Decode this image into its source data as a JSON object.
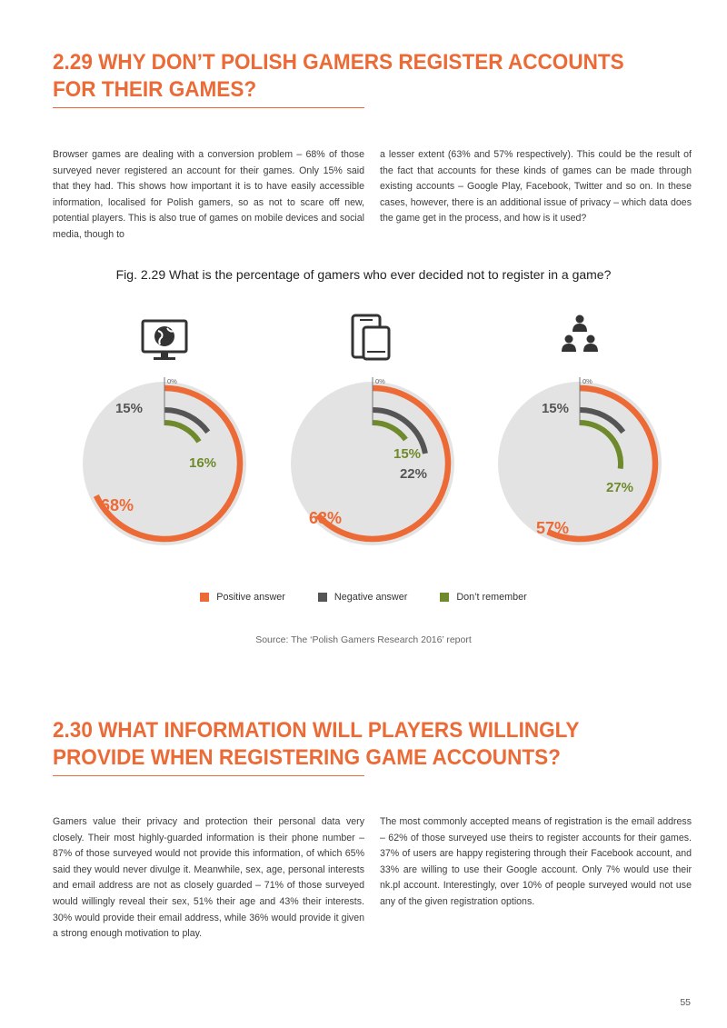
{
  "section1": {
    "heading": "2.29 WHY DON’T POLISH GAMERS REGISTER ACCOUNTS FOR THEIR GAMES?",
    "col_left": "Browser games are dealing with a conversion problem – 68% of those surveyed never registered an account for their games. Only 15% said that they had. This shows how important it is to have easily accessible information, localised for Polish gamers, so as not to scare off new, potential players. This is also true of games on mobile devices and social media, though to",
    "col_right": "a lesser extent (63% and 57% respectively). This could be the result of the fact that accounts for these kinds of games can be made through existing accounts – Google Play, Facebook, Twitter and so on. In these cases, however, there is an additional issue of privacy – which data does the game get in the process, and how is it used?"
  },
  "figure": {
    "title": "Fig. 2.29 What is the percentage of gamers who ever decided not to register in a game?",
    "source": "Source: The ‘Polish Gamers Research 2016’ report"
  },
  "colors": {
    "positive": "#ec6a36",
    "negative": "#555555",
    "dont_remember": "#6f8a2c",
    "disc": "#e3e3e3",
    "accent": "#ec6a36"
  },
  "chart_data": {
    "type": "radial-bar",
    "series": [
      {
        "name": "Positive answer",
        "color": "#ec6a36"
      },
      {
        "name": "Negative answer",
        "color": "#555555"
      },
      {
        "name": "Don’t remember",
        "color": "#6f8a2c"
      }
    ],
    "charts": [
      {
        "icon": "desktop-globe-icon",
        "zero_label": "0%",
        "positive": 68,
        "negative": 15,
        "dont_remember": 16,
        "labels": {
          "positive": "68%",
          "negative": "15%",
          "dont_remember": "16%"
        }
      },
      {
        "icon": "mobile-devices-icon",
        "zero_label": "0%",
        "positive": 63,
        "negative": 22,
        "dont_remember": 15,
        "labels": {
          "positive": "63%",
          "negative": "22%",
          "dont_remember": "15%"
        }
      },
      {
        "icon": "social-network-icon",
        "zero_label": "0%",
        "positive": 57,
        "negative": 15,
        "dont_remember": 27,
        "labels": {
          "positive": "57%",
          "negative": "15%",
          "dont_remember": "27%"
        }
      }
    ]
  },
  "section2": {
    "heading": "2.30 WHAT INFORMATION WILL PLAYERS WILLINGLY PROVIDE WHEN REGISTERING GAME ACCOUNTS?",
    "col_left": "Gamers value their privacy and protection their personal data very closely. Their most highly-guarded information is their phone number – 87% of those surveyed would not provide this information, of which 65% said they would never divulge it. Meanwhile, sex, age, personal interests and email address are not as closely guarded – 71% of those surveyed would willingly reveal their sex, 51% their age and 43% their interests. 30% would provide their email address, while 36% would provide it given a strong enough motivation to play.",
    "col_right": "The most commonly accepted means of registration is the email address – 62% of those surveyed use theirs to register accounts for their games. 37% of users are happy registering through their Facebook account, and 33% are willing to use their Google account. Only 7% would use their nk.pl account. Interestingly, over 10% of people surveyed would not use any of the given registration options."
  },
  "page_number": "55"
}
